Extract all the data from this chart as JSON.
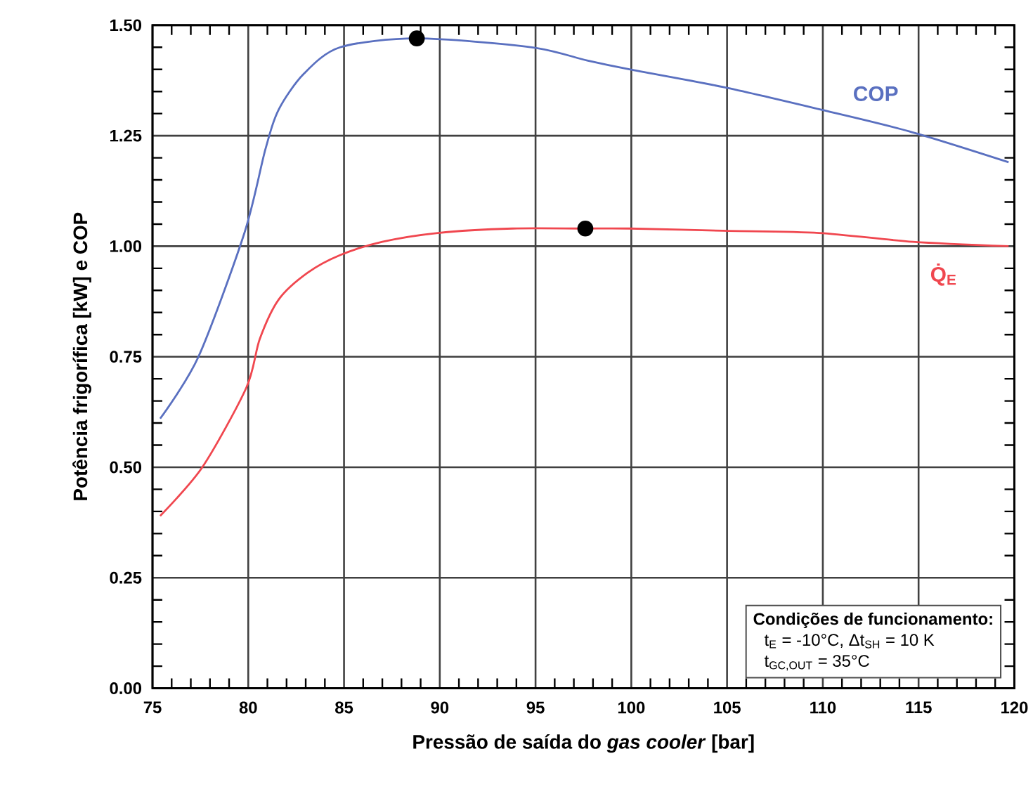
{
  "chart_data": {
    "type": "line",
    "xlabel": "Pressão de saída do *gas cooler* [bar]",
    "ylabel": "Potência frigorífica [kW] e COP",
    "xlim": [
      75,
      120
    ],
    "xticks": [
      75,
      80,
      85,
      90,
      95,
      100,
      105,
      110,
      115,
      120
    ],
    "ylim": [
      0,
      1.5
    ],
    "yticks": [
      {
        "value": 0,
        "label": "0.00"
      },
      {
        "value": 0.25,
        "label": "0.25"
      },
      {
        "value": 0.5,
        "label": "0.50"
      },
      {
        "value": 0.75,
        "label": "0.75"
      },
      {
        "value": 1.0,
        "label": "1.00"
      },
      {
        "value": 1.25,
        "label": "1.25"
      },
      {
        "value": 1.5,
        "label": "1.50"
      }
    ],
    "grid": true,
    "line_style": "solid",
    "marker": "none",
    "series": [
      {
        "name": "COP",
        "color": "#5a70c0",
        "x": [
          75.4,
          77.4,
          79.8,
          80.9,
          81.6,
          82.9,
          84.8,
          88.8,
          94.8,
          97.7,
          99.9,
          104.8,
          109.8,
          114.5,
          119.7
        ],
        "values": [
          0.61,
          0.75,
          1.03,
          1.22,
          1.31,
          1.39,
          1.45,
          1.47,
          1.45,
          1.42,
          1.4,
          1.36,
          1.31,
          1.26,
          1.19
        ]
      },
      {
        "name": "Q̇$_{E}$",
        "color": "#f0474f",
        "x": [
          75.4,
          77.6,
          79.9,
          80.6,
          81.6,
          83.1,
          84.8,
          87.0,
          89.9,
          93.8,
          97.5,
          99.9,
          104.8,
          109.8,
          114.7,
          119.7
        ],
        "values": [
          0.39,
          0.5,
          0.68,
          0.79,
          0.88,
          0.94,
          0.98,
          1.01,
          1.03,
          1.04,
          1.04,
          1.04,
          1.035,
          1.03,
          1.01,
          1.0
        ]
      },
      {
        "type": "scatter",
        "color": "#000000",
        "marker": "circle",
        "x": [
          88.8,
          97.6
        ],
        "values": [
          1.47,
          1.04
        ]
      }
    ],
    "annotations": [
      "Condições de funcionamento:",
      "t$_{E}$ = -10°C, Δt$_{SH}$ = 10 K",
      "t$_{GC,OUT}$ = 35°C"
    ]
  }
}
